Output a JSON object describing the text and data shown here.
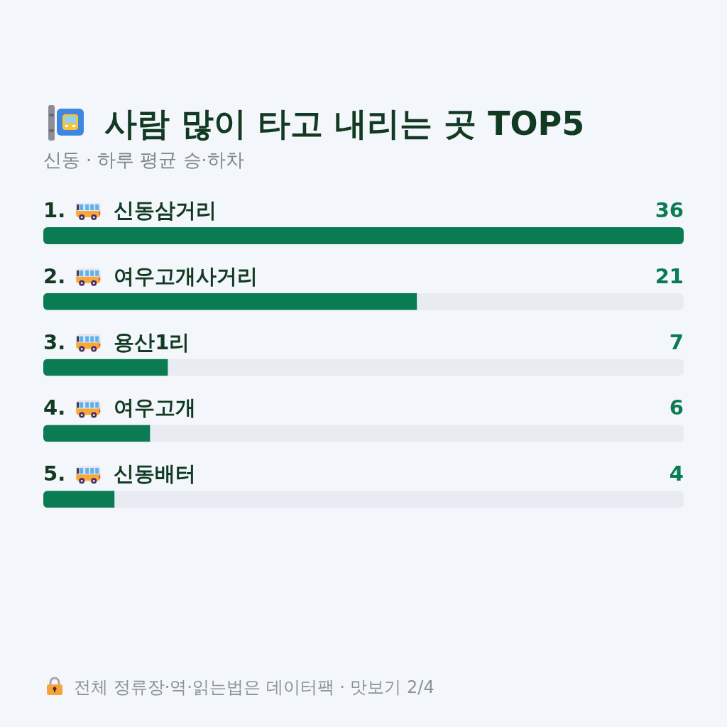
{
  "chart_data": {
    "type": "bar",
    "orientation": "horizontal",
    "title": "사람 많이 타고 내리는 곳 TOP5",
    "subtitle": "신동 · 하루 평균 승·하차",
    "categories": [
      "1. 신동삼거리",
      "2. 여우고개사거리",
      "3. 용산1리",
      "4. 여우고개",
      "5. 신동배터"
    ],
    "values": [
      36,
      21,
      7,
      6,
      4
    ],
    "color": "#0a7b52",
    "xlim": [
      0,
      36
    ],
    "data_labels": true,
    "tick_labels": "y",
    "annotations": [
      "전체 정류장·역·읽는법은 데이터팩 · 맛보기 2/4"
    ]
  }
}
